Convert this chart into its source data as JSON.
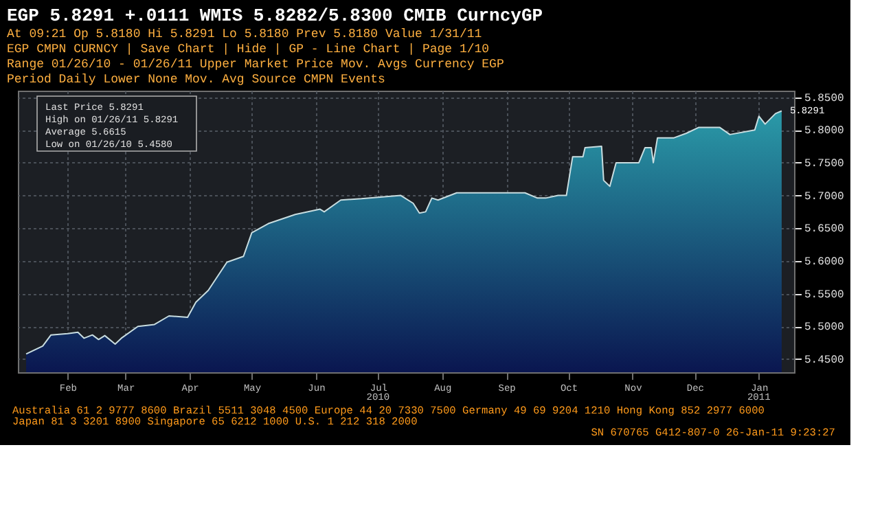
{
  "chart_data": {
    "type": "area",
    "title": "EGP  5.8291  +.0111   WMIS 5.8282/5.8300 CMIB      CurncyGP",
    "subtitle": [
      "At 09:21 Op 5.8180  Hi 5.8291  Lo 5.8180  Prev 5.8180          Value 1/31/11",
      "EGP CMPN CURNCY | Save Chart | Hide | GP - Line Chart | Page 1/10",
      "Range 01/26/10 - 01/26/11  Upper Market Price  Mov. Avgs  Currency EGP",
      "Period Daily  Lower None  Mov. Avg  Source CMPN  Events"
    ],
    "x": [
      "2010-01-26",
      "2010-02-03",
      "2010-02-07",
      "2010-02-15",
      "2010-02-20",
      "2010-02-23",
      "2010-02-27",
      "2010-03-02",
      "2010-03-05",
      "2010-03-10",
      "2010-03-13",
      "2010-03-21",
      "2010-03-29",
      "2010-04-05",
      "2010-04-14",
      "2010-04-18",
      "2010-04-24",
      "2010-05-03",
      "2010-05-11",
      "2010-05-15",
      "2010-05-23",
      "2010-06-05",
      "2010-06-17",
      "2010-06-19",
      "2010-06-27",
      "2010-07-07",
      "2010-07-18",
      "2010-07-26",
      "2010-08-01",
      "2010-08-04",
      "2010-08-07",
      "2010-08-10",
      "2010-08-13",
      "2010-08-22",
      "2010-09-05",
      "2010-09-24",
      "2010-09-30",
      "2010-10-04",
      "2010-10-10",
      "2010-10-14",
      "2010-10-17",
      "2010-10-22",
      "2010-10-23",
      "2010-10-31",
      "2010-11-01",
      "2010-11-04",
      "2010-11-07",
      "2010-11-18",
      "2010-11-21",
      "2010-11-24",
      "2010-11-25",
      "2010-11-27",
      "2010-12-05",
      "2010-12-11",
      "2010-12-17",
      "2010-12-27",
      "2011-01-01",
      "2011-01-13",
      "2011-01-15",
      "2011-01-18",
      "2011-01-23",
      "2011-01-26"
    ],
    "series": [
      {
        "color": "#2a9aa8",
        "values": [
          5.458,
          5.47,
          5.487,
          5.489,
          5.491,
          5.482,
          5.487,
          5.48,
          5.486,
          5.473,
          5.482,
          5.5,
          5.503,
          5.516,
          5.514,
          5.537,
          5.555,
          5.598,
          5.607,
          5.643,
          5.657,
          5.671,
          5.679,
          5.675,
          5.693,
          5.695,
          5.698,
          5.7,
          5.688,
          5.673,
          5.675,
          5.696,
          5.693,
          5.704,
          5.704,
          5.704,
          5.696,
          5.696,
          5.7,
          5.7,
          5.759,
          5.759,
          5.773,
          5.775,
          5.723,
          5.714,
          5.75,
          5.75,
          5.773,
          5.773,
          5.75,
          5.788,
          5.788,
          5.795,
          5.804,
          5.804,
          5.793,
          5.8,
          5.821,
          5.809,
          5.825,
          5.8291
        ]
      }
    ],
    "xlim": [
      "2010-01-22",
      "2011-02-01"
    ],
    "xticks": [
      {
        "value": "2010-02-15",
        "label": "Feb"
      },
      {
        "value": "2010-03-15",
        "label": "Mar"
      },
      {
        "value": "2010-04-15",
        "label": "Apr"
      },
      {
        "value": "2010-05-15",
        "label": "May"
      },
      {
        "value": "2010-06-15",
        "label": "Jun"
      },
      {
        "value": "2010-07-15",
        "label": "Jul"
      },
      {
        "value": "2010-08-15",
        "label": "Aug"
      },
      {
        "value": "2010-09-15",
        "label": "Sep"
      },
      {
        "value": "2010-10-15",
        "label": "Oct"
      },
      {
        "value": "2010-11-15",
        "label": "Nov"
      },
      {
        "value": "2010-12-15",
        "label": "Dec"
      },
      {
        "value": "2011-01-15",
        "label": "Jan"
      }
    ],
    "ylim": [
      5.43,
      5.86
    ],
    "yticks": [
      {
        "value": 5.45,
        "label": "5.4500"
      },
      {
        "value": 5.5,
        "label": "5.5000"
      },
      {
        "value": 5.55,
        "label": "5.5500"
      },
      {
        "value": 5.6,
        "label": "5.6000"
      },
      {
        "value": 5.65,
        "label": "5.6500"
      },
      {
        "value": 5.7,
        "label": "5.7000"
      },
      {
        "value": 5.75,
        "label": "5.7500"
      },
      {
        "value": 5.8,
        "label": "5.8000"
      },
      {
        "value": 5.85,
        "label": "5.8500"
      }
    ],
    "grid": true,
    "annotations": [
      "Last Price 5.8291",
      "High on 01/26/11 5.8291",
      "Average 5.6615",
      "Low on 01/26/10 5.4580",
      "2010",
      "2011",
      "Australia 61 2 9777 8600 Brazil 5511 3048 4500 Europe 44 20 7330 7500 Germany 49 69 9204 1210 Hong Kong 852 2977 6000",
      "Japan 81 3 3201 8900     Singapore 65 6212 1000     U.S. 1 212 318 2000",
      "SN 670765 G412-807-0 26-Jan-11  9:23:27",
      {
        "text": "5.8291",
        "x": "2011-01-26",
        "y": 5.8291
      }
    ]
  }
}
